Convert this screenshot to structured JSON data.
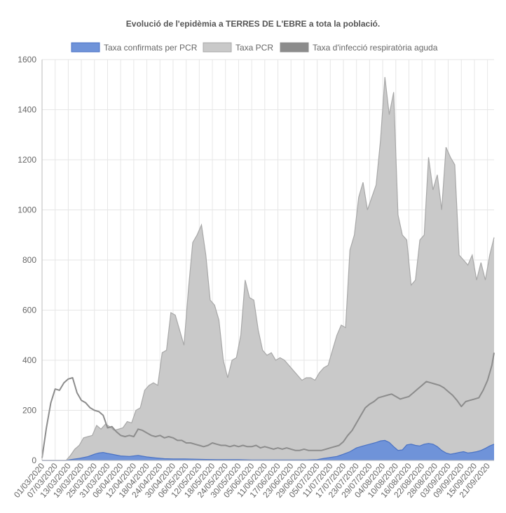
{
  "chart_data": {
    "type": "area",
    "title": "Evolució de l'epidèmia a TERRES DE L'EBRE a tota la població.",
    "legend_position": "top",
    "grid": true,
    "ylim": [
      0,
      1600
    ],
    "y_ticks": [
      0,
      200,
      400,
      600,
      800,
      1000,
      1200,
      1400,
      1600
    ],
    "x_range": [
      "01/03/2020",
      "24/09/2020"
    ],
    "x_tick_labels": [
      "01/03/2020",
      "07/03/2020",
      "13/03/2020",
      "19/03/2020",
      "25/03/2020",
      "31/03/2020",
      "06/04/2020",
      "12/04/2020",
      "18/04/2020",
      "24/04/2020",
      "30/04/2020",
      "06/05/2020",
      "12/05/2020",
      "18/05/2020",
      "24/05/2020",
      "30/05/2020",
      "05/06/2020",
      "11/06/2020",
      "17/06/2020",
      "23/06/2020",
      "29/06/2020",
      "05/07/2020",
      "11/07/2020",
      "17/07/2020",
      "23/07/2020",
      "29/07/2020",
      "04/08/2020",
      "10/08/2020",
      "16/08/2020",
      "22/08/2020",
      "28/08/2020",
      "03/09/2020",
      "09/09/2020",
      "15/09/2020",
      "21/09/2020"
    ],
    "series": [
      {
        "name": "Taxa confirmats per PCR",
        "style": "area",
        "fill": "#6f93d9",
        "stroke": "#4a72c4",
        "points": [
          [
            "01/03/2020",
            0
          ],
          [
            "12/03/2020",
            0
          ],
          [
            "14/03/2020",
            3
          ],
          [
            "18/03/2020",
            8
          ],
          [
            "22/03/2020",
            15
          ],
          [
            "25/03/2020",
            25
          ],
          [
            "27/03/2020",
            30
          ],
          [
            "29/03/2020",
            32
          ],
          [
            "31/03/2020",
            28
          ],
          [
            "02/04/2020",
            25
          ],
          [
            "06/04/2020",
            18
          ],
          [
            "10/04/2020",
            16
          ],
          [
            "14/04/2020",
            20
          ],
          [
            "18/04/2020",
            14
          ],
          [
            "22/04/2020",
            10
          ],
          [
            "26/04/2020",
            7
          ],
          [
            "30/04/2020",
            6
          ],
          [
            "05/05/2020",
            6
          ],
          [
            "10/05/2020",
            5
          ],
          [
            "15/05/2020",
            4
          ],
          [
            "20/05/2020",
            3
          ],
          [
            "25/05/2020",
            3
          ],
          [
            "30/05/2020",
            3
          ],
          [
            "05/06/2020",
            2
          ],
          [
            "10/06/2020",
            2
          ],
          [
            "15/06/2020",
            2
          ],
          [
            "20/06/2020",
            2
          ],
          [
            "25/06/2020",
            2
          ],
          [
            "30/06/2020",
            2
          ],
          [
            "05/07/2020",
            3
          ],
          [
            "08/07/2020",
            8
          ],
          [
            "11/07/2020",
            12
          ],
          [
            "14/07/2020",
            16
          ],
          [
            "17/07/2020",
            25
          ],
          [
            "20/07/2020",
            35
          ],
          [
            "23/07/2020",
            50
          ],
          [
            "26/07/2020",
            58
          ],
          [
            "29/07/2020",
            65
          ],
          [
            "01/08/2020",
            72
          ],
          [
            "03/08/2020",
            78
          ],
          [
            "05/08/2020",
            80
          ],
          [
            "07/08/2020",
            72
          ],
          [
            "09/08/2020",
            55
          ],
          [
            "11/08/2020",
            40
          ],
          [
            "13/08/2020",
            42
          ],
          [
            "15/08/2020",
            62
          ],
          [
            "17/08/2020",
            65
          ],
          [
            "19/08/2020",
            60
          ],
          [
            "21/08/2020",
            58
          ],
          [
            "23/08/2020",
            65
          ],
          [
            "25/08/2020",
            68
          ],
          [
            "27/08/2020",
            65
          ],
          [
            "29/08/2020",
            55
          ],
          [
            "31/08/2020",
            40
          ],
          [
            "02/09/2020",
            30
          ],
          [
            "04/09/2020",
            25
          ],
          [
            "06/09/2020",
            28
          ],
          [
            "08/09/2020",
            32
          ],
          [
            "10/09/2020",
            35
          ],
          [
            "12/09/2020",
            30
          ],
          [
            "14/09/2020",
            32
          ],
          [
            "16/09/2020",
            35
          ],
          [
            "18/09/2020",
            40
          ],
          [
            "20/09/2020",
            48
          ],
          [
            "22/09/2020",
            58
          ],
          [
            "24/09/2020",
            65
          ]
        ]
      },
      {
        "name": "Taxa PCR",
        "style": "area",
        "fill": "#c9c9c9",
        "stroke": "#a8a8a8",
        "points": [
          [
            "01/03/2020",
            0
          ],
          [
            "12/03/2020",
            0
          ],
          [
            "14/03/2020",
            20
          ],
          [
            "16/03/2020",
            45
          ],
          [
            "18/03/2020",
            60
          ],
          [
            "20/03/2020",
            90
          ],
          [
            "22/03/2020",
            95
          ],
          [
            "24/03/2020",
            100
          ],
          [
            "26/03/2020",
            140
          ],
          [
            "28/03/2020",
            125
          ],
          [
            "30/03/2020",
            145
          ],
          [
            "01/04/2020",
            135
          ],
          [
            "03/04/2020",
            120
          ],
          [
            "05/04/2020",
            125
          ],
          [
            "07/04/2020",
            130
          ],
          [
            "09/04/2020",
            155
          ],
          [
            "11/04/2020",
            150
          ],
          [
            "13/04/2020",
            200
          ],
          [
            "15/04/2020",
            210
          ],
          [
            "17/04/2020",
            280
          ],
          [
            "19/04/2020",
            300
          ],
          [
            "21/04/2020",
            310
          ],
          [
            "23/04/2020",
            300
          ],
          [
            "25/04/2020",
            430
          ],
          [
            "27/04/2020",
            440
          ],
          [
            "29/04/2020",
            590
          ],
          [
            "01/05/2020",
            580
          ],
          [
            "03/05/2020",
            520
          ],
          [
            "05/05/2020",
            460
          ],
          [
            "07/05/2020",
            680
          ],
          [
            "09/05/2020",
            870
          ],
          [
            "11/05/2020",
            900
          ],
          [
            "13/05/2020",
            940
          ],
          [
            "15/05/2020",
            820
          ],
          [
            "17/05/2020",
            640
          ],
          [
            "19/05/2020",
            620
          ],
          [
            "21/05/2020",
            560
          ],
          [
            "23/05/2020",
            400
          ],
          [
            "25/05/2020",
            330
          ],
          [
            "27/05/2020",
            400
          ],
          [
            "29/05/2020",
            410
          ],
          [
            "31/05/2020",
            500
          ],
          [
            "02/06/2020",
            720
          ],
          [
            "04/06/2020",
            650
          ],
          [
            "06/06/2020",
            640
          ],
          [
            "08/06/2020",
            520
          ],
          [
            "10/06/2020",
            440
          ],
          [
            "12/06/2020",
            420
          ],
          [
            "14/06/2020",
            430
          ],
          [
            "16/06/2020",
            400
          ],
          [
            "18/06/2020",
            410
          ],
          [
            "20/06/2020",
            400
          ],
          [
            "22/06/2020",
            380
          ],
          [
            "24/06/2020",
            360
          ],
          [
            "26/06/2020",
            340
          ],
          [
            "28/06/2020",
            320
          ],
          [
            "30/06/2020",
            330
          ],
          [
            "02/07/2020",
            330
          ],
          [
            "04/07/2020",
            320
          ],
          [
            "06/07/2020",
            350
          ],
          [
            "08/07/2020",
            370
          ],
          [
            "10/07/2020",
            380
          ],
          [
            "12/07/2020",
            440
          ],
          [
            "14/07/2020",
            500
          ],
          [
            "16/07/2020",
            540
          ],
          [
            "18/07/2020",
            530
          ],
          [
            "20/07/2020",
            840
          ],
          [
            "22/07/2020",
            900
          ],
          [
            "24/07/2020",
            1050
          ],
          [
            "26/07/2020",
            1110
          ],
          [
            "28/07/2020",
            1000
          ],
          [
            "30/07/2020",
            1050
          ],
          [
            "01/08/2020",
            1100
          ],
          [
            "03/08/2020",
            1280
          ],
          [
            "05/08/2020",
            1530
          ],
          [
            "07/08/2020",
            1380
          ],
          [
            "09/08/2020",
            1470
          ],
          [
            "11/08/2020",
            980
          ],
          [
            "13/08/2020",
            900
          ],
          [
            "15/08/2020",
            880
          ],
          [
            "17/08/2020",
            700
          ],
          [
            "19/08/2020",
            720
          ],
          [
            "21/08/2020",
            880
          ],
          [
            "23/08/2020",
            900
          ],
          [
            "25/08/2020",
            1210
          ],
          [
            "27/08/2020",
            1080
          ],
          [
            "29/08/2020",
            1140
          ],
          [
            "31/08/2020",
            1000
          ],
          [
            "02/09/2020",
            1250
          ],
          [
            "04/09/2020",
            1210
          ],
          [
            "06/09/2020",
            1180
          ],
          [
            "08/09/2020",
            820
          ],
          [
            "10/09/2020",
            800
          ],
          [
            "12/09/2020",
            780
          ],
          [
            "14/09/2020",
            820
          ],
          [
            "16/09/2020",
            720
          ],
          [
            "18/09/2020",
            790
          ],
          [
            "20/09/2020",
            720
          ],
          [
            "22/09/2020",
            820
          ],
          [
            "24/09/2020",
            890
          ]
        ]
      },
      {
        "name": "Taxa d'infecció respiratòria aguda",
        "style": "line",
        "stroke": "#8c8c8c",
        "points": [
          [
            "01/03/2020",
            10
          ],
          [
            "03/03/2020",
            130
          ],
          [
            "05/03/2020",
            230
          ],
          [
            "07/03/2020",
            285
          ],
          [
            "09/03/2020",
            280
          ],
          [
            "11/03/2020",
            310
          ],
          [
            "13/03/2020",
            325
          ],
          [
            "15/03/2020",
            330
          ],
          [
            "17/03/2020",
            270
          ],
          [
            "19/03/2020",
            240
          ],
          [
            "21/03/2020",
            230
          ],
          [
            "23/03/2020",
            210
          ],
          [
            "25/03/2020",
            200
          ],
          [
            "27/03/2020",
            195
          ],
          [
            "29/03/2020",
            180
          ],
          [
            "31/03/2020",
            130
          ],
          [
            "02/04/2020",
            135
          ],
          [
            "04/04/2020",
            115
          ],
          [
            "06/04/2020",
            100
          ],
          [
            "08/04/2020",
            95
          ],
          [
            "10/04/2020",
            100
          ],
          [
            "12/04/2020",
            95
          ],
          [
            "14/04/2020",
            125
          ],
          [
            "16/04/2020",
            120
          ],
          [
            "18/04/2020",
            110
          ],
          [
            "20/04/2020",
            100
          ],
          [
            "22/04/2020",
            95
          ],
          [
            "24/04/2020",
            100
          ],
          [
            "26/04/2020",
            90
          ],
          [
            "28/04/2020",
            95
          ],
          [
            "30/04/2020",
            90
          ],
          [
            "02/05/2020",
            80
          ],
          [
            "04/05/2020",
            80
          ],
          [
            "06/05/2020",
            70
          ],
          [
            "08/05/2020",
            70
          ],
          [
            "10/05/2020",
            65
          ],
          [
            "12/05/2020",
            60
          ],
          [
            "14/05/2020",
            55
          ],
          [
            "16/05/2020",
            60
          ],
          [
            "18/05/2020",
            70
          ],
          [
            "20/05/2020",
            65
          ],
          [
            "22/05/2020",
            60
          ],
          [
            "24/05/2020",
            60
          ],
          [
            "26/05/2020",
            55
          ],
          [
            "28/05/2020",
            60
          ],
          [
            "30/05/2020",
            55
          ],
          [
            "01/06/2020",
            60
          ],
          [
            "03/06/2020",
            55
          ],
          [
            "05/06/2020",
            55
          ],
          [
            "07/06/2020",
            60
          ],
          [
            "09/06/2020",
            50
          ],
          [
            "11/06/2020",
            55
          ],
          [
            "13/06/2020",
            50
          ],
          [
            "15/06/2020",
            45
          ],
          [
            "17/06/2020",
            50
          ],
          [
            "19/06/2020",
            45
          ],
          [
            "21/06/2020",
            50
          ],
          [
            "23/06/2020",
            45
          ],
          [
            "25/06/2020",
            40
          ],
          [
            "27/06/2020",
            40
          ],
          [
            "29/06/2020",
            45
          ],
          [
            "01/07/2020",
            40
          ],
          [
            "03/07/2020",
            40
          ],
          [
            "05/07/2020",
            40
          ],
          [
            "07/07/2020",
            40
          ],
          [
            "09/07/2020",
            45
          ],
          [
            "11/07/2020",
            50
          ],
          [
            "13/07/2020",
            55
          ],
          [
            "15/07/2020",
            60
          ],
          [
            "17/07/2020",
            75
          ],
          [
            "19/07/2020",
            100
          ],
          [
            "21/07/2020",
            120
          ],
          [
            "23/07/2020",
            150
          ],
          [
            "25/07/2020",
            180
          ],
          [
            "27/07/2020",
            210
          ],
          [
            "29/07/2020",
            225
          ],
          [
            "31/07/2020",
            235
          ],
          [
            "02/08/2020",
            250
          ],
          [
            "04/08/2020",
            255
          ],
          [
            "06/08/2020",
            260
          ],
          [
            "08/08/2020",
            265
          ],
          [
            "10/08/2020",
            255
          ],
          [
            "12/08/2020",
            245
          ],
          [
            "14/08/2020",
            250
          ],
          [
            "16/08/2020",
            255
          ],
          [
            "18/08/2020",
            270
          ],
          [
            "20/08/2020",
            285
          ],
          [
            "22/08/2020",
            300
          ],
          [
            "24/08/2020",
            315
          ],
          [
            "26/08/2020",
            310
          ],
          [
            "28/08/2020",
            305
          ],
          [
            "30/08/2020",
            300
          ],
          [
            "01/09/2020",
            290
          ],
          [
            "03/09/2020",
            275
          ],
          [
            "05/09/2020",
            260
          ],
          [
            "07/09/2020",
            240
          ],
          [
            "09/09/2020",
            215
          ],
          [
            "11/09/2020",
            235
          ],
          [
            "13/09/2020",
            240
          ],
          [
            "15/09/2020",
            245
          ],
          [
            "17/09/2020",
            250
          ],
          [
            "19/09/2020",
            280
          ],
          [
            "21/09/2020",
            320
          ],
          [
            "23/09/2020",
            380
          ],
          [
            "24/09/2020",
            430
          ]
        ]
      }
    ]
  }
}
